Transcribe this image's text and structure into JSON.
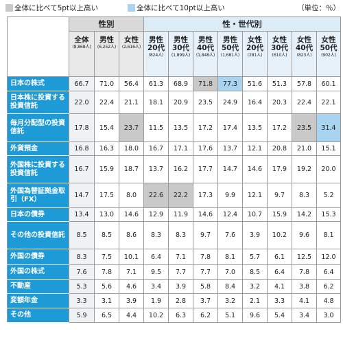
{
  "legend": {
    "gray_label": "全体に比べて5pt以上高い",
    "blue_label": "全体に比べて10pt以上高い",
    "unit": "（単位：％）",
    "gray_color": "#c9c9c9",
    "blue_color": "#a8d4ef"
  },
  "header": {
    "group_gender": "性別",
    "group_gender_age": "性・世代別",
    "columns": [
      {
        "label": "全体",
        "n": "(8,868人)"
      },
      {
        "label": "男性",
        "n": "(6,252人)"
      },
      {
        "label": "女性",
        "n": "(2,616人)"
      },
      {
        "label": "男性 20代",
        "n": "(824人)"
      },
      {
        "label": "男性 30代",
        "n": "(1,899人)"
      },
      {
        "label": "男性 40代",
        "n": "(1,848人)"
      },
      {
        "label": "男性 50代",
        "n": "(1,681人)"
      },
      {
        "label": "女性 20代",
        "n": "(281人)"
      },
      {
        "label": "女性 30代",
        "n": "(610人)"
      },
      {
        "label": "女性 40代",
        "n": "(823人)"
      },
      {
        "label": "女性 50代",
        "n": "(902人)"
      }
    ]
  },
  "rows": [
    {
      "label": "日本の株式",
      "values": [
        "66.7",
        "71.0",
        "56.4",
        "61.3",
        "68.9",
        "71.8",
        "77.3",
        "51.6",
        "51.3",
        "57.8",
        "60.1"
      ],
      "hl": [
        "",
        "",
        "",
        "",
        "",
        "g",
        "b",
        "",
        "",
        "",
        ""
      ]
    },
    {
      "label": "日本株に投資する投資信託",
      "values": [
        "22.0",
        "22.4",
        "21.1",
        "18.1",
        "20.9",
        "23.5",
        "24.9",
        "16.4",
        "20.3",
        "22.4",
        "22.1"
      ],
      "hl": [
        "",
        "",
        "",
        "",
        "",
        "",
        "",
        "",
        "",
        "",
        ""
      ]
    },
    {
      "label": "毎月分配型の投資信託",
      "values": [
        "17.8",
        "15.4",
        "23.7",
        "11.5",
        "13.5",
        "17.2",
        "17.4",
        "13.5",
        "17.2",
        "23.5",
        "31.4"
      ],
      "hl": [
        "",
        "",
        "g",
        "",
        "",
        "",
        "",
        "",
        "",
        "g",
        "b"
      ]
    },
    {
      "label": "外貨預金",
      "values": [
        "16.8",
        "16.3",
        "18.0",
        "16.7",
        "17.1",
        "17.6",
        "13.7",
        "12.1",
        "20.8",
        "21.0",
        "15.1"
      ],
      "hl": [
        "",
        "",
        "",
        "",
        "",
        "",
        "",
        "",
        "",
        "",
        ""
      ]
    },
    {
      "label": "外国株に投資する投資信託",
      "values": [
        "16.7",
        "15.9",
        "18.7",
        "13.7",
        "16.2",
        "17.7",
        "14.7",
        "14.6",
        "17.9",
        "19.2",
        "20.0"
      ],
      "hl": [
        "",
        "",
        "",
        "",
        "",
        "",
        "",
        "",
        "",
        "",
        ""
      ]
    },
    {
      "label": "外国為替証拠金取引（FX）",
      "values": [
        "14.7",
        "17.5",
        "8.0",
        "22.6",
        "22.2",
        "17.3",
        "9.9",
        "12.1",
        "9.7",
        "8.3",
        "5.2"
      ],
      "hl": [
        "",
        "",
        "",
        "g",
        "g",
        "",
        "",
        "",
        "",
        "",
        ""
      ]
    },
    {
      "label": "日本の債券",
      "values": [
        "13.4",
        "13.0",
        "14.6",
        "12.9",
        "11.9",
        "14.6",
        "12.4",
        "10.7",
        "15.9",
        "14.2",
        "15.3"
      ],
      "hl": [
        "",
        "",
        "",
        "",
        "",
        "",
        "",
        "",
        "",
        "",
        ""
      ]
    },
    {
      "label": "その他の投資信託",
      "values": [
        "8.5",
        "8.5",
        "8.6",
        "8.3",
        "8.3",
        "9.7",
        "7.6",
        "3.9",
        "10.2",
        "9.6",
        "8.1"
      ],
      "hl": [
        "",
        "",
        "",
        "",
        "",
        "",
        "",
        "",
        "",
        "",
        ""
      ]
    },
    {
      "label": "外国の債券",
      "values": [
        "8.3",
        "7.5",
        "10.1",
        "6.4",
        "7.1",
        "7.8",
        "8.1",
        "5.7",
        "6.1",
        "12.5",
        "12.0"
      ],
      "hl": [
        "",
        "",
        "",
        "",
        "",
        "",
        "",
        "",
        "",
        "",
        ""
      ]
    },
    {
      "label": "外国の株式",
      "values": [
        "7.6",
        "7.8",
        "7.1",
        "9.5",
        "7.7",
        "7.7",
        "7.0",
        "8.5",
        "6.4",
        "7.8",
        "6.4"
      ],
      "hl": [
        "",
        "",
        "",
        "",
        "",
        "",
        "",
        "",
        "",
        "",
        ""
      ]
    },
    {
      "label": "不動産",
      "values": [
        "5.3",
        "5.6",
        "4.6",
        "3.4",
        "3.9",
        "5.8",
        "8.4",
        "3.2",
        "4.1",
        "3.8",
        "6.2"
      ],
      "hl": [
        "",
        "",
        "",
        "",
        "",
        "",
        "",
        "",
        "",
        "",
        ""
      ]
    },
    {
      "label": "変額年金",
      "values": [
        "3.3",
        "3.1",
        "3.9",
        "1.9",
        "2.8",
        "3.7",
        "3.2",
        "2.1",
        "3.3",
        "4.1",
        "4.8"
      ],
      "hl": [
        "",
        "",
        "",
        "",
        "",
        "",
        "",
        "",
        "",
        "",
        ""
      ]
    },
    {
      "label": "その他",
      "values": [
        "5.9",
        "6.5",
        "4.4",
        "10.2",
        "6.3",
        "6.2",
        "5.1",
        "9.6",
        "5.4",
        "3.4",
        "3.0"
      ],
      "hl": [
        "",
        "",
        "",
        "",
        "",
        "",
        "",
        "",
        "",
        "",
        ""
      ]
    }
  ]
}
